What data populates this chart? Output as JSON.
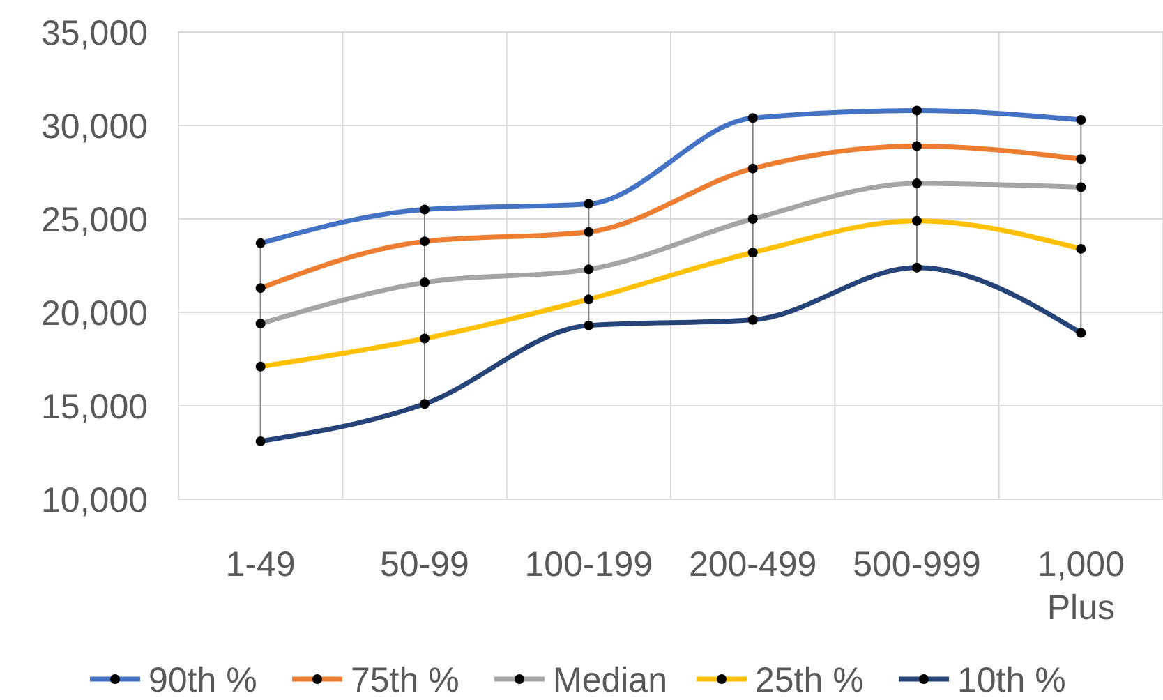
{
  "chart_data": {
    "type": "line",
    "categories": [
      "1-49",
      "50-99",
      "100-199",
      "200-499",
      "500-999",
      "1,000 Plus"
    ],
    "series": [
      {
        "name": "90th %",
        "color": "#4472c4",
        "values": [
          23700,
          25500,
          25800,
          30400,
          30800,
          30300
        ]
      },
      {
        "name": "75th %",
        "color": "#ed7d31",
        "values": [
          21300,
          23800,
          24300,
          27700,
          28900,
          28200
        ]
      },
      {
        "name": "Median",
        "color": "#a5a5a5",
        "values": [
          19400,
          21600,
          22300,
          25000,
          26900,
          26700
        ]
      },
      {
        "name": "25th %",
        "color": "#ffc000",
        "values": [
          17100,
          18600,
          20700,
          23200,
          24900,
          23400
        ]
      },
      {
        "name": "10th %",
        "color": "#264478",
        "values": [
          13100,
          15100,
          19300,
          19600,
          22400,
          18900
        ]
      }
    ],
    "ylim": [
      10000,
      35000
    ],
    "yticks": [
      {
        "value": 10000,
        "label": "10,000"
      },
      {
        "value": 15000,
        "label": "15,000"
      },
      {
        "value": 20000,
        "label": "20,000"
      },
      {
        "value": 25000,
        "label": "25,000"
      },
      {
        "value": 30000,
        "label": "30,000"
      },
      {
        "value": 35000,
        "label": "35,000"
      }
    ],
    "grid": true,
    "legend": "bottom",
    "marker": "circle",
    "line_style": "solid"
  }
}
